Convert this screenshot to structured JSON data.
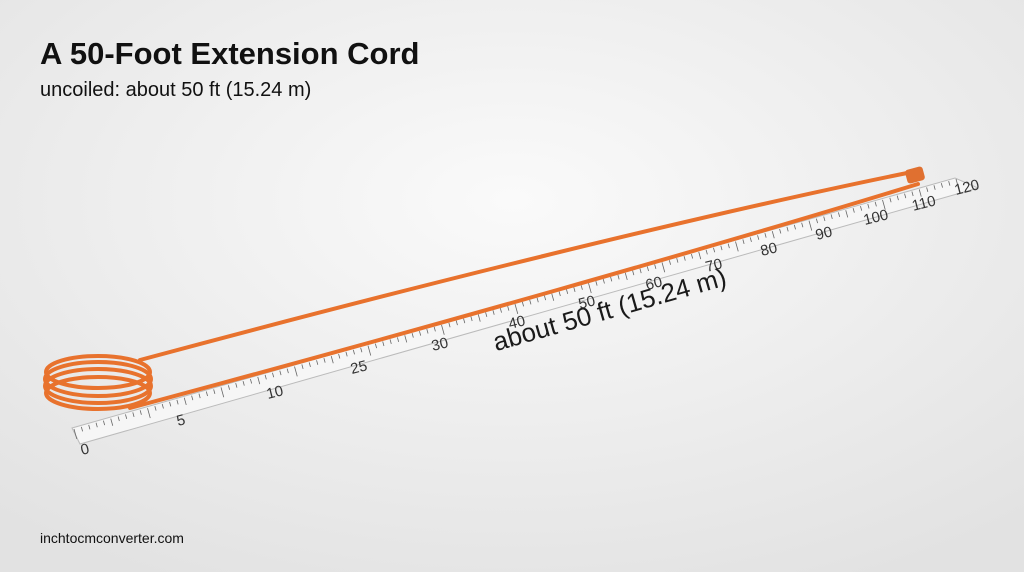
{
  "header": {
    "title": "A 50-Foot Extension Cord",
    "subtitle": "uncoiled: about 50 ft (15.24 m)"
  },
  "ruler": {
    "labels": [
      0,
      5,
      10,
      25,
      30,
      40,
      50,
      60,
      70,
      80,
      90,
      100,
      110,
      120
    ],
    "annotation": "about 50 ft (15.24 m)"
  },
  "footer": {
    "source": "inchtocmconverter.com"
  }
}
